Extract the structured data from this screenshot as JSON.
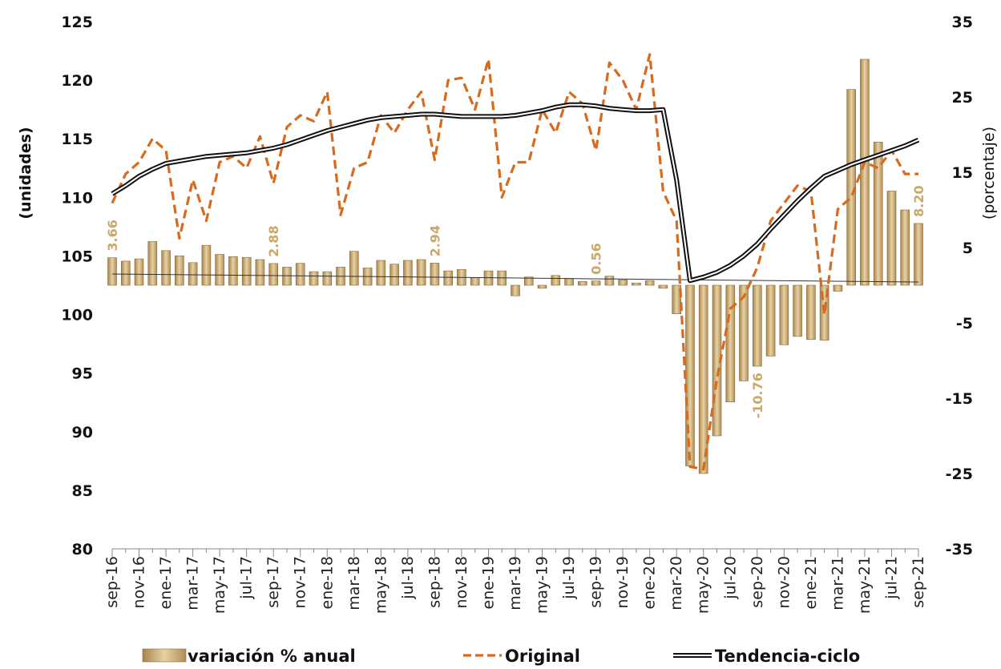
{
  "chart_data": {
    "type": "bar+line",
    "categories": [
      "sep-16",
      "oct-16",
      "nov-16",
      "dic-16",
      "ene-17",
      "feb-17",
      "mar-17",
      "abr-17",
      "may-17",
      "jun-17",
      "jul-17",
      "ago-17",
      "sep-17",
      "oct-17",
      "nov-17",
      "dic-17",
      "ene-18",
      "feb-18",
      "mar-18",
      "abr-18",
      "may-18",
      "jun-18",
      "jul-18",
      "ago-18",
      "sep-18",
      "oct-18",
      "nov-18",
      "dic-18",
      "ene-19",
      "feb-19",
      "mar-19",
      "abr-19",
      "may-19",
      "jun-19",
      "jul-19",
      "ago-19",
      "sep-19",
      "oct-19",
      "nov-19",
      "dic-19",
      "ene-20",
      "feb-20",
      "mar-20",
      "abr-20",
      "may-20",
      "jun-20",
      "jul-20",
      "ago-20",
      "sep-20",
      "oct-20",
      "nov-20",
      "dic-20",
      "ene-21",
      "feb-21",
      "mar-21",
      "abr-21",
      "may-21",
      "jun-21",
      "jul-21",
      "ago-21",
      "sep-21"
    ],
    "x_tick_labels": [
      "sep-16",
      "nov-16",
      "ene-17",
      "mar-17",
      "may-17",
      "jul-17",
      "sep-17",
      "nov-17",
      "ene-18",
      "mar-18",
      "may-18",
      "jul-18",
      "sep-18",
      "nov-18",
      "ene-19",
      "mar-19",
      "may-19",
      "jul-19",
      "sep-19",
      "nov-19",
      "ene-20",
      "mar-20",
      "may-20",
      "jul-20",
      "sep-20",
      "nov-20",
      "ene-21",
      "mar-21",
      "may-21",
      "jul-21",
      "sep-21"
    ],
    "y_left": {
      "title": "(unidades)",
      "min": 80,
      "max": 125,
      "ticks": [
        80,
        85,
        90,
        95,
        100,
        105,
        110,
        115,
        120,
        125
      ]
    },
    "y_right": {
      "title": "(porcentaje)",
      "min": -35,
      "max": 35,
      "ticks": [
        -35,
        -25,
        -15,
        -5,
        5,
        15,
        25,
        35
      ]
    },
    "series": [
      {
        "name": "variación % anual",
        "type": "bar",
        "axis": "right",
        "color": "#c8a76e",
        "values": [
          3.66,
          3.2,
          3.5,
          5.8,
          4.6,
          3.9,
          3.0,
          5.3,
          4.1,
          3.8,
          3.7,
          3.4,
          2.88,
          2.4,
          2.9,
          1.8,
          1.8,
          2.4,
          4.5,
          2.3,
          3.3,
          2.8,
          3.3,
          3.4,
          2.94,
          1.9,
          2.1,
          1.0,
          1.9,
          1.9,
          -1.4,
          1.1,
          -0.4,
          1.3,
          0.9,
          0.5,
          0.56,
          1.2,
          0.7,
          0.3,
          0.6,
          -0.4,
          -3.8,
          -24.0,
          -25.0,
          -20.0,
          -15.5,
          -12.7,
          -10.76,
          -9.4,
          -7.9,
          -6.8,
          -7.2,
          -7.3,
          -0.8,
          26.0,
          30.0,
          19.0,
          12.5,
          10.0,
          8.2
        ]
      },
      {
        "name": "Original",
        "type": "line-dashed",
        "axis": "left",
        "color": "#d86a1e",
        "values": [
          109.5,
          112.0,
          113.0,
          115.0,
          114.0,
          106.5,
          111.5,
          108.0,
          113.0,
          113.5,
          112.5,
          115.2,
          111.2,
          116.0,
          117.0,
          116.5,
          119.0,
          108.5,
          112.5,
          113.0,
          117.0,
          115.5,
          117.5,
          119.0,
          113.2,
          120.0,
          120.2,
          117.5,
          121.8,
          110.0,
          113.0,
          113.0,
          117.5,
          115.5,
          119.0,
          118.0,
          114.0,
          121.5,
          120.0,
          117.5,
          122.2,
          110.5,
          108.0,
          87.0,
          86.8,
          94.5,
          100.5,
          101.5,
          104.0,
          108.0,
          109.5,
          111.0,
          110.5,
          100.0,
          109.0,
          110.0,
          113.0,
          112.5,
          114.0,
          112.0,
          112.0
        ]
      },
      {
        "name": "Tendencia-ciclo",
        "type": "line-double",
        "axis": "left",
        "color": "#111111",
        "values": [
          110.3,
          111.0,
          111.8,
          112.4,
          112.9,
          113.1,
          113.3,
          113.5,
          113.6,
          113.7,
          113.8,
          114.0,
          114.2,
          114.5,
          114.9,
          115.3,
          115.7,
          116.0,
          116.3,
          116.6,
          116.8,
          116.9,
          117.0,
          117.1,
          117.1,
          117.0,
          116.9,
          116.9,
          116.9,
          116.9,
          117.0,
          117.2,
          117.4,
          117.7,
          117.9,
          117.9,
          117.8,
          117.6,
          117.5,
          117.4,
          117.4,
          117.5,
          111.5,
          102.9,
          103.2,
          103.6,
          104.2,
          105.0,
          106.0,
          107.3,
          108.5,
          109.7,
          110.8,
          111.8,
          112.3,
          112.8,
          113.2,
          113.6,
          114.0,
          114.4,
          114.9
        ]
      }
    ],
    "data_labels": [
      {
        "index": 0,
        "text": "3.66"
      },
      {
        "index": 12,
        "text": "2.88"
      },
      {
        "index": 24,
        "text": "2.94"
      },
      {
        "index": 36,
        "text": "0.56"
      },
      {
        "index": 48,
        "text": "-10.76"
      },
      {
        "index": 60,
        "text": "8.20"
      }
    ],
    "legend": {
      "placement": "bottom",
      "items": [
        {
          "label": "variación % anual",
          "marker": "bar"
        },
        {
          "label": "Original",
          "marker": "dashed"
        },
        {
          "label": "Tendencia-ciclo",
          "marker": "double"
        }
      ]
    },
    "grid": false
  }
}
